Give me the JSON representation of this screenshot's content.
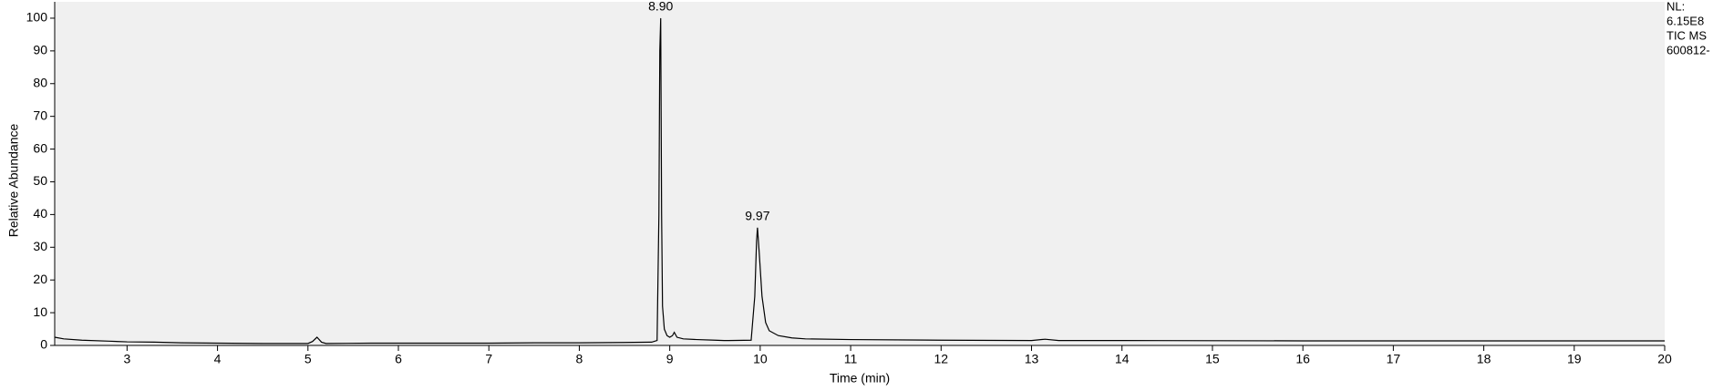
{
  "chart_data": {
    "type": "line",
    "xlabel": "Time (min)",
    "ylabel": "Relative Abundance",
    "x": [
      2.2,
      2.3,
      2.5,
      2.8,
      3.0,
      3.3,
      3.6,
      4.0,
      4.5,
      5.0,
      5.05,
      5.1,
      5.15,
      5.2,
      5.7,
      6.4,
      7.0,
      7.5,
      8.0,
      8.5,
      8.8,
      8.86,
      8.88,
      8.89,
      8.9,
      8.91,
      8.92,
      8.94,
      8.97,
      9.0,
      9.03,
      9.05,
      9.08,
      9.15,
      9.3,
      9.5,
      9.6,
      9.65,
      9.9,
      9.94,
      9.96,
      9.97,
      9.99,
      10.02,
      10.06,
      10.1,
      10.2,
      10.35,
      10.5,
      11.0,
      12.0,
      13.0,
      13.15,
      13.3,
      14,
      16,
      18,
      20
    ],
    "values": [
      2.5,
      2.0,
      1.6,
      1.3,
      1.1,
      1.0,
      0.8,
      0.7,
      0.6,
      0.6,
      1.2,
      2.5,
      1.0,
      0.6,
      0.7,
      0.7,
      0.7,
      0.8,
      0.8,
      0.9,
      1.0,
      1.5,
      40,
      90,
      100,
      40,
      12,
      5,
      3,
      2.5,
      3,
      4,
      2.5,
      2,
      1.8,
      1.6,
      1.5,
      1.5,
      1.6,
      15,
      32,
      36,
      28,
      15,
      7,
      4.5,
      3,
      2.3,
      2.0,
      1.8,
      1.6,
      1.5,
      1.9,
      1.5,
      1.5,
      1.4,
      1.4,
      1.4
    ],
    "color": "#000000",
    "xlim": [
      2.2,
      20
    ],
    "ylim": [
      0,
      105
    ],
    "xticks": [
      3,
      4,
      5,
      6,
      7,
      8,
      9,
      10,
      11,
      12,
      13,
      14,
      15,
      16,
      17,
      18,
      19,
      20
    ],
    "yticks": [
      0,
      10,
      20,
      30,
      40,
      50,
      60,
      70,
      80,
      90,
      100
    ],
    "annotations": [
      {
        "text": "8.90",
        "x": 8.9,
        "y": 100
      },
      {
        "text": "9.97",
        "x": 9.97,
        "y": 36
      }
    ],
    "side_labels": [
      "NL:",
      "6.15E8",
      "TIC MS",
      "600812-"
    ]
  }
}
